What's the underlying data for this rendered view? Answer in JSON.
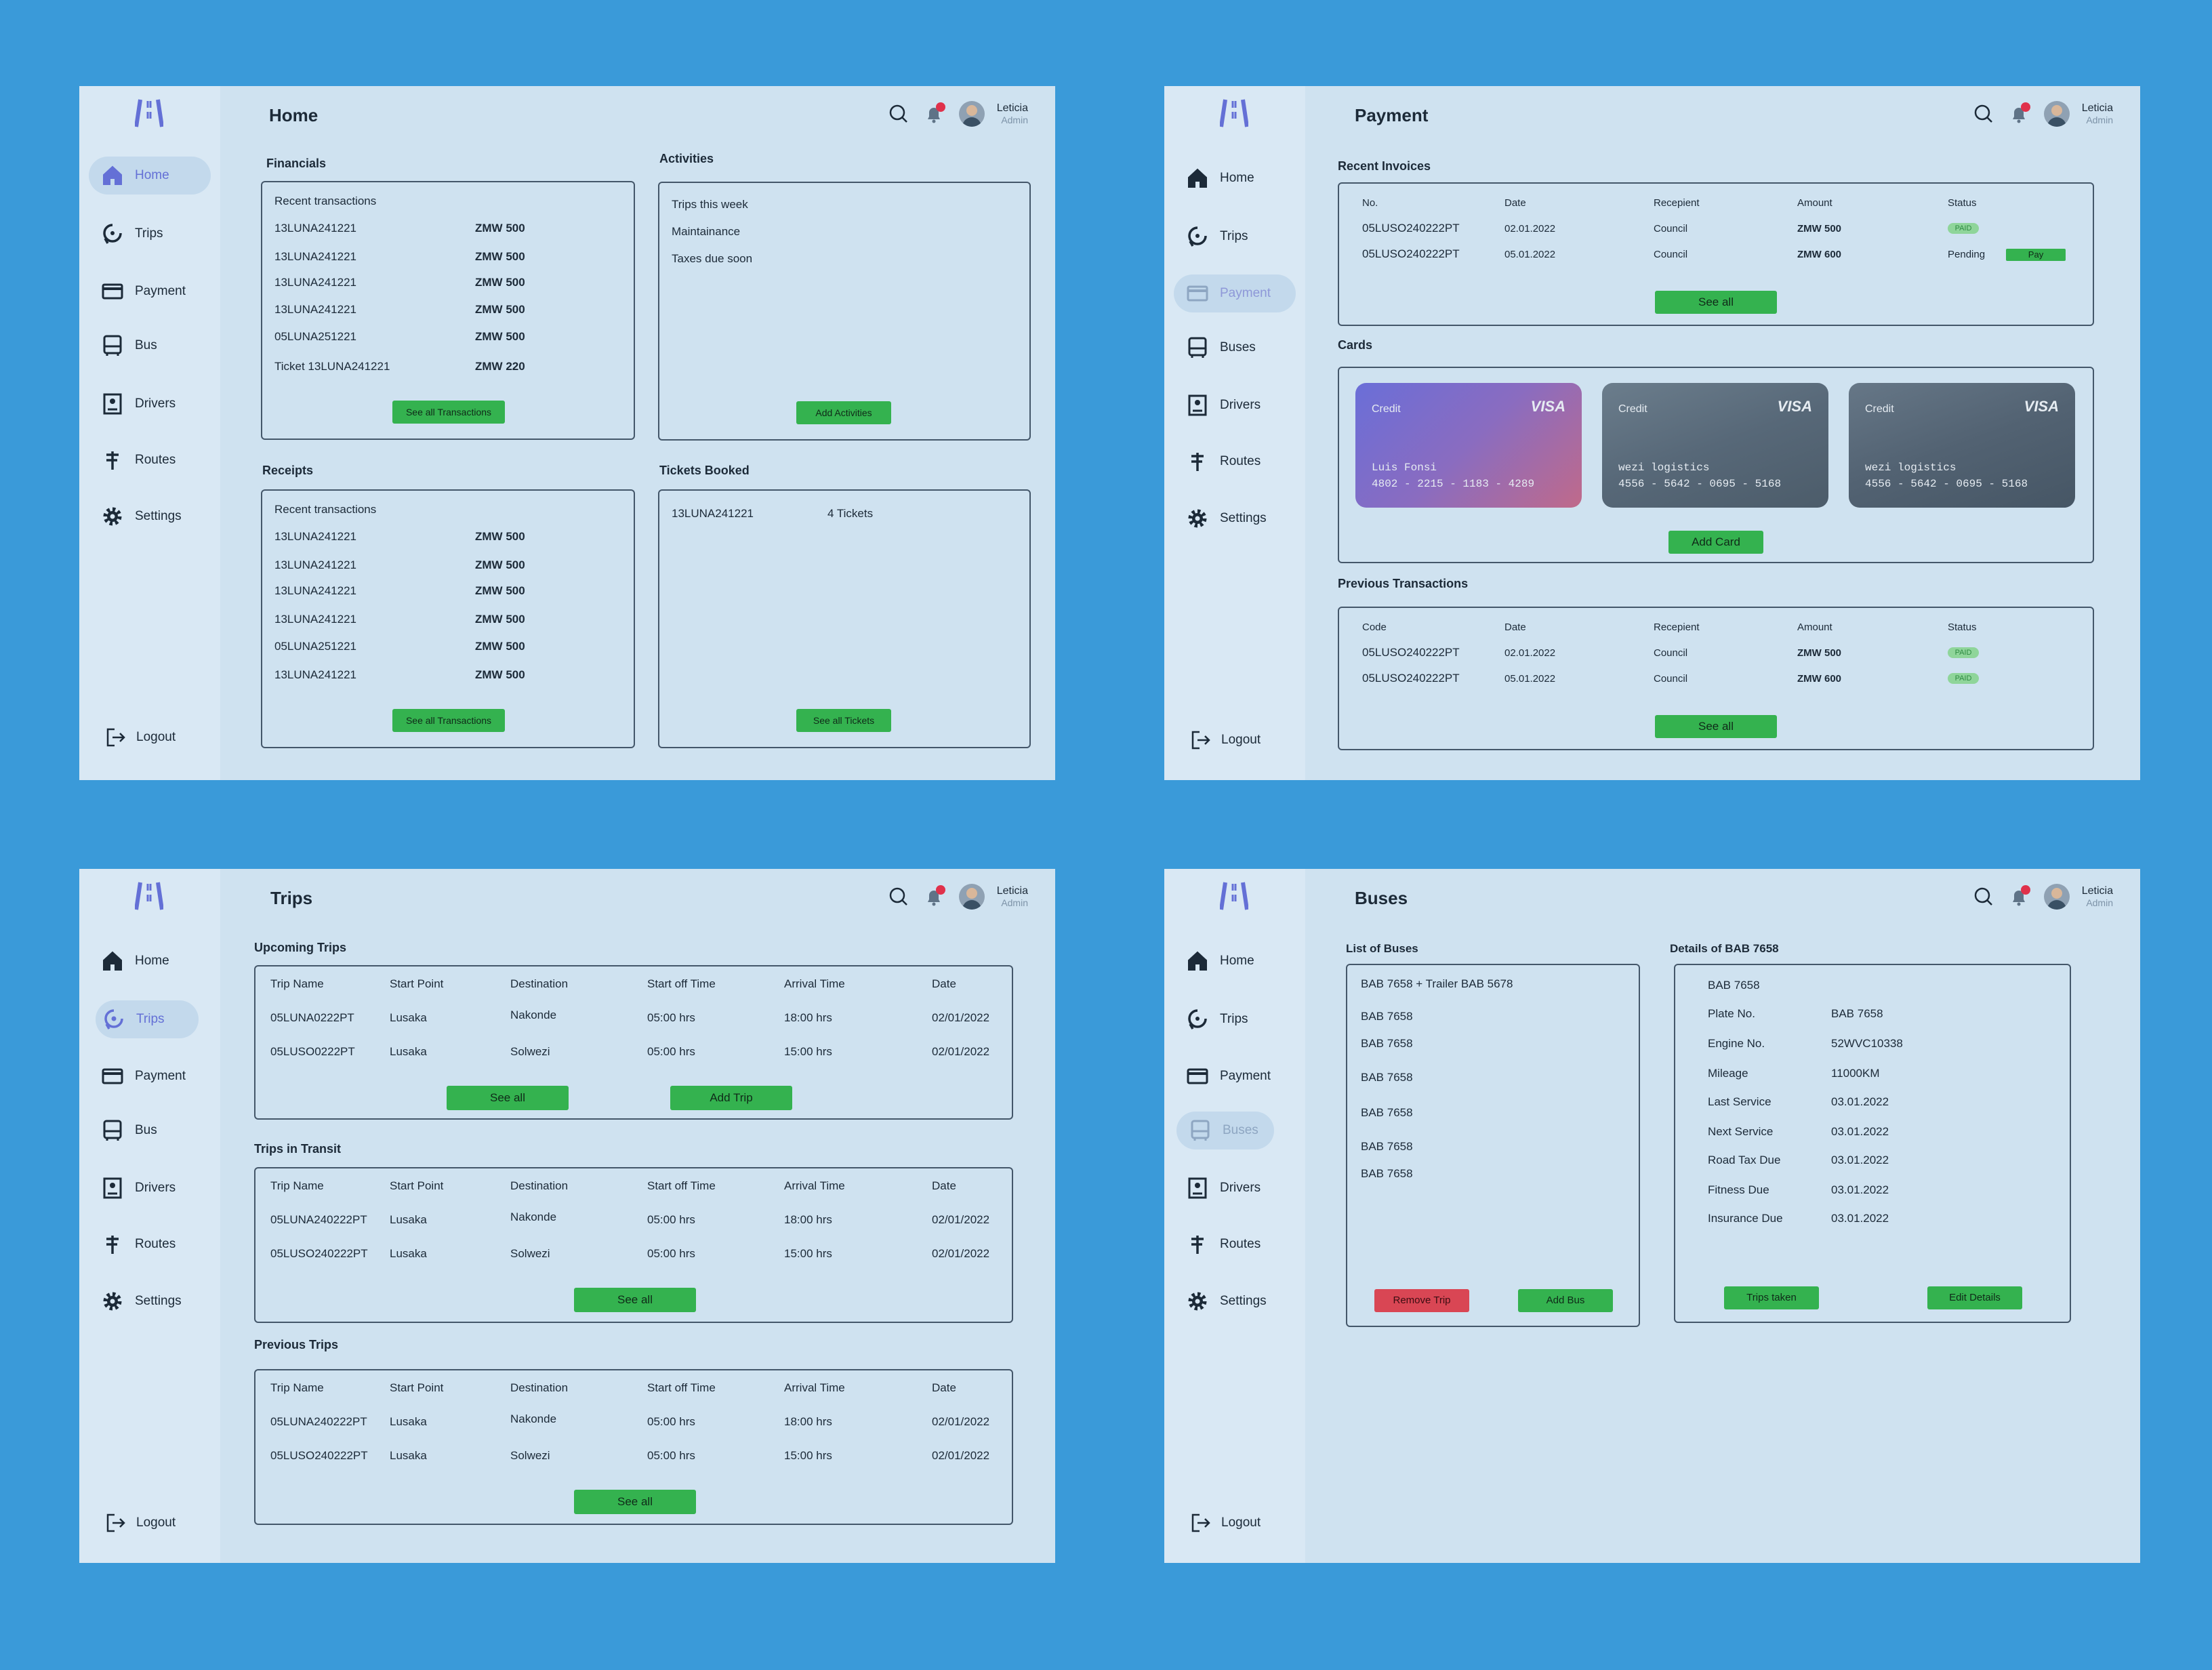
{
  "colors": {
    "background": "#3a9ad9",
    "panel": "#cfe2f0",
    "sidebar": "#d9e8f4",
    "accent": "#6470d6",
    "green": "#34b24f",
    "red": "#d94654",
    "bell_dot": "#e0314b"
  },
  "user": {
    "name": "Leticia",
    "role": "Admin"
  },
  "nav_icons": [
    "home-icon",
    "trips-icon",
    "payment-icon",
    "bus-icon",
    "drivers-icon",
    "routes-icon",
    "settings-icon"
  ],
  "logout": "Logout",
  "home": {
    "title": "Home",
    "nav": [
      "Home",
      "Trips",
      "Payment",
      "Bus",
      "Drivers",
      "Routes",
      "Settings"
    ],
    "financials": {
      "heading": "Financials",
      "subheading": "Recent transactions",
      "rows": [
        {
          "id": "13LUNA241221",
          "amount": "ZMW 500"
        },
        {
          "id": "13LUNA241221",
          "amount": "ZMW 500"
        },
        {
          "id": "13LUNA241221",
          "amount": "ZMW 500"
        },
        {
          "id": "13LUNA241221",
          "amount": "ZMW 500"
        },
        {
          "id": "05LUNA251221",
          "amount": "ZMW 500"
        },
        {
          "id": "Ticket 13LUNA241221",
          "amount": "ZMW 220"
        }
      ],
      "button": "See all Transactions"
    },
    "activities": {
      "heading": "Activities",
      "items": [
        "Trips this week",
        "Maintainance",
        "Taxes due soon"
      ],
      "button": "Add Activities"
    },
    "receipts": {
      "heading": "Receipts",
      "subheading": "Recent transactions",
      "rows": [
        {
          "id": "13LUNA241221",
          "amount": "ZMW 500"
        },
        {
          "id": "13LUNA241221",
          "amount": "ZMW 500"
        },
        {
          "id": "13LUNA241221",
          "amount": "ZMW 500"
        },
        {
          "id": "13LUNA241221",
          "amount": "ZMW 500"
        },
        {
          "id": "05LUNA251221",
          "amount": "ZMW 500"
        },
        {
          "id": "13LUNA241221",
          "amount": "ZMW 500"
        }
      ],
      "button": "See all Transactions"
    },
    "tickets": {
      "heading": "Tickets Booked",
      "row": {
        "id": "13LUNA241221",
        "count": "4 Tickets"
      },
      "button": "See all Tickets"
    }
  },
  "payment": {
    "title": "Payment",
    "nav": [
      "Home",
      "Trips",
      "Payment",
      "Buses",
      "Drivers",
      "Routes",
      "Settings"
    ],
    "invoices": {
      "heading": "Recent Invoices",
      "headers": [
        "No.",
        "Date",
        "Recepient",
        "Amount",
        "Status"
      ],
      "rows": [
        {
          "no": "05LUSO240222PT",
          "date": "02.01.2022",
          "recipient": "Council",
          "amount": "ZMW 500",
          "status": "PAID"
        },
        {
          "no": "05LUSO240222PT",
          "date": "05.01.2022",
          "recipient": "Council",
          "amount": "ZMW 600",
          "status": "Pending",
          "action": "Pay"
        }
      ],
      "button": "See all"
    },
    "cards": {
      "heading": "Cards",
      "items": [
        {
          "type": "Credit",
          "brand": "VISA",
          "holder": "Luis Fonsi",
          "number": "4802 - 2215 - 1183 - 4289"
        },
        {
          "type": "Credit",
          "brand": "VISA",
          "holder": "wezi logistics",
          "number": "4556 - 5642 - 0695 - 5168"
        },
        {
          "type": "Credit",
          "brand": "VISA",
          "holder": "wezi logistics",
          "number": "4556 - 5642 - 0695 - 5168"
        }
      ],
      "button": "Add Card"
    },
    "previous": {
      "heading": "Previous Transactions",
      "headers": [
        "Code",
        "Date",
        "Recepient",
        "Amount",
        "Status"
      ],
      "rows": [
        {
          "no": "05LUSO240222PT",
          "date": "02.01.2022",
          "recipient": "Council",
          "amount": "ZMW 500",
          "status": "PAID"
        },
        {
          "no": "05LUSO240222PT",
          "date": "05.01.2022",
          "recipient": "Council",
          "amount": "ZMW 600",
          "status": "PAID"
        }
      ],
      "button": "See all"
    }
  },
  "trips": {
    "title": "Trips",
    "nav": [
      "Home",
      "Trips",
      "Payment",
      "Bus",
      "Drivers",
      "Routes",
      "Settings"
    ],
    "headers": [
      "Trip Name",
      "Start Point",
      "Destination",
      "Start off Time",
      "Arrival  Time",
      "Date"
    ],
    "upcoming": {
      "heading": "Upcoming Trips",
      "rows": [
        [
          "05LUNA0222PT",
          "Lusaka",
          "Nakonde",
          "05:00 hrs",
          "18:00 hrs",
          "02/01/2022"
        ],
        [
          "05LUSO0222PT",
          "Lusaka",
          "Solwezi",
          "05:00 hrs",
          "15:00 hrs",
          "02/01/2022"
        ]
      ],
      "button_see": "See all",
      "button_add": "Add Trip"
    },
    "transit": {
      "heading": "Trips in Transit",
      "rows": [
        [
          "05LUNA240222PT",
          "Lusaka",
          "Nakonde",
          "05:00 hrs",
          "18:00 hrs",
          "02/01/2022"
        ],
        [
          "05LUSO240222PT",
          "Lusaka",
          "Solwezi",
          "05:00 hrs",
          "15:00 hrs",
          "02/01/2022"
        ]
      ],
      "button_see": "See all"
    },
    "previous": {
      "heading": "Previous Trips",
      "rows": [
        [
          "05LUNA240222PT",
          "Lusaka",
          "Nakonde",
          "05:00 hrs",
          "18:00 hrs",
          "02/01/2022"
        ],
        [
          "05LUSO240222PT",
          "Lusaka",
          "Solwezi",
          "05:00 hrs",
          "15:00 hrs",
          "02/01/2022"
        ]
      ],
      "button_see": "See all"
    }
  },
  "buses": {
    "title": "Buses",
    "nav": [
      "Home",
      "Trips",
      "Payment",
      "Buses",
      "Drivers",
      "Routes",
      "Settings"
    ],
    "list": {
      "heading": "List of Buses",
      "items": [
        "BAB 7658 + Trailer BAB 5678",
        "BAB 7658",
        "BAB 7658",
        "BAB 7658",
        "BAB 7658",
        "BAB 7658",
        "BAB 7658"
      ],
      "button_remove": "Remove Trip",
      "button_add": "Add Bus"
    },
    "details": {
      "heading": "Details of BAB 7658",
      "name": "BAB 7658",
      "fields": [
        {
          "label": "Plate No.",
          "value": "BAB 7658"
        },
        {
          "label": "Engine No.",
          "value": "52WVC10338"
        },
        {
          "label": "Mileage",
          "value": "11000KM"
        },
        {
          "label": "Last Service",
          "value": "03.01.2022"
        },
        {
          "label": "Next Service",
          "value": "03.01.2022"
        },
        {
          "label": "Road Tax Due",
          "value": "03.01.2022"
        },
        {
          "label": "Fitness Due",
          "value": "03.01.2022"
        },
        {
          "label": "Insurance Due",
          "value": "03.01.2022"
        }
      ],
      "button_trips": "Trips taken",
      "button_edit": "Edit Details"
    }
  }
}
